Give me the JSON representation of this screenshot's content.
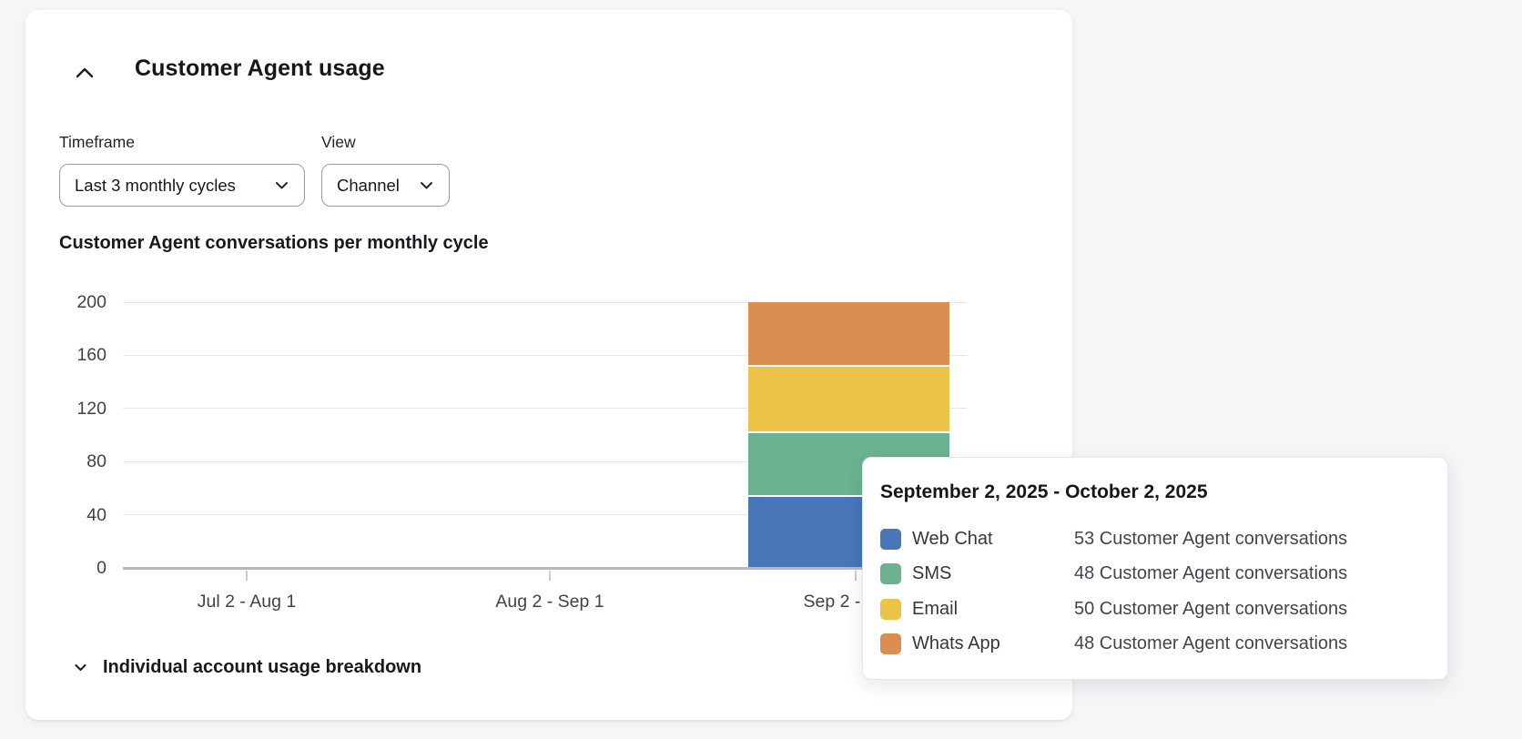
{
  "card": {
    "title": "Customer Agent usage",
    "filters": {
      "timeframe_label": "Timeframe",
      "timeframe_value": "Last 3 monthly cycles",
      "view_label": "View",
      "view_value": "Channel"
    },
    "breakdown": {
      "label": "Individual account usage breakdown"
    }
  },
  "chart_data": {
    "type": "bar",
    "stacked": true,
    "title": "Customer Agent conversations per monthly cycle",
    "categories": [
      "Jul 2 - Aug 1",
      "Aug 2 - Sep 1",
      "Sep 2 - Oct 2"
    ],
    "series": [
      {
        "name": "Web Chat",
        "color": "#4876B8",
        "values": [
          0,
          0,
          53
        ]
      },
      {
        "name": "SMS",
        "color": "#6BB291",
        "values": [
          0,
          0,
          48
        ]
      },
      {
        "name": "Email",
        "color": "#EBC447",
        "values": [
          0,
          0,
          50
        ]
      },
      {
        "name": "Whats App",
        "color": "#DA8E52",
        "values": [
          0,
          0,
          48
        ]
      }
    ],
    "ylim": [
      0,
      200
    ],
    "yticks": [
      0,
      40,
      80,
      120,
      160,
      200
    ],
    "xlabel": "",
    "ylabel": "",
    "grid": true,
    "legend_position": "tooltip"
  },
  "tooltip": {
    "title": "September 2, 2025 - October 2, 2025",
    "rows": [
      {
        "label": "Web Chat",
        "color": "#4876B8",
        "value": "53 Customer Agent conversations"
      },
      {
        "label": "SMS",
        "color": "#6BB291",
        "value": "48 Customer Agent conversations"
      },
      {
        "label": "Email",
        "color": "#EBC447",
        "value": "50 Customer Agent conversations"
      },
      {
        "label": "Whats App",
        "color": "#DA8E52",
        "value": "48 Customer Agent conversations"
      }
    ]
  },
  "colors": {
    "page_background": "#F4F6F8",
    "card_background": "#FFFFFF",
    "gridline": "#E4E6EA",
    "axis_line": "#B5B9C0",
    "axis_text": "#3E434B"
  }
}
